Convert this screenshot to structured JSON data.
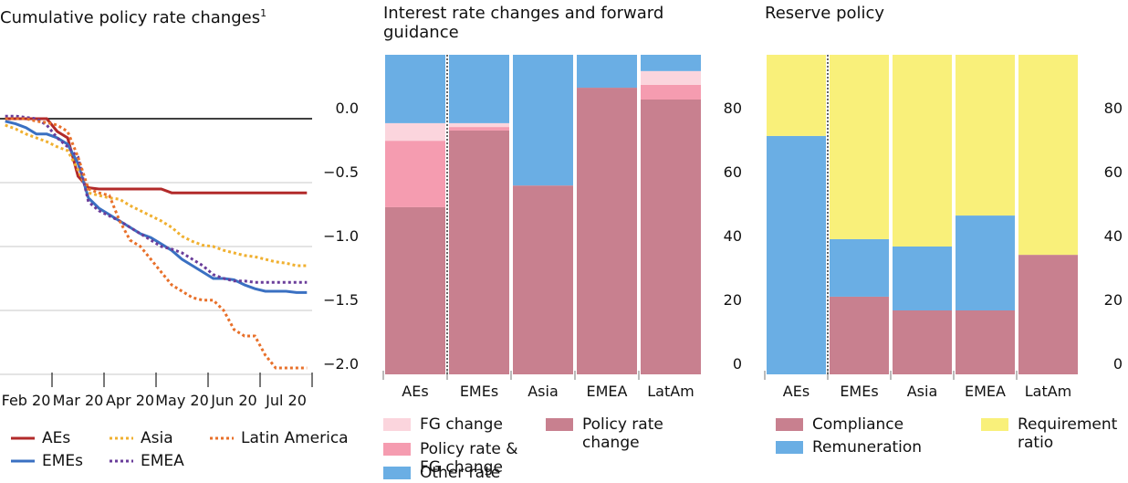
{
  "chart_data": [
    {
      "type": "line",
      "title": "Cumulative policy rate changes",
      "title_footnote": "1",
      "categories": [
        null,
        null,
        "Feb 20",
        null,
        null,
        null,
        null,
        "Mar 20",
        null,
        null,
        null,
        null,
        "Apr 20",
        null,
        null,
        null,
        null,
        "May 20",
        null,
        null,
        null,
        null,
        "Jun 20",
        null,
        null,
        null,
        null,
        "Jul 20",
        null,
        null
      ],
      "ylim": [
        -2,
        0.5
      ],
      "yticks": [
        {
          "value": 0,
          "label": "0.0"
        },
        {
          "value": -0.5,
          "label": "−0.5"
        },
        {
          "value": -1,
          "label": "−1.0"
        },
        {
          "value": -1.5,
          "label": "−1.5"
        },
        {
          "value": -2,
          "label": "−2.0"
        }
      ],
      "grid": true,
      "series": [
        {
          "name": "AEs",
          "color": "#b22a2a",
          "dashed": false,
          "values": [
            0,
            0,
            0,
            0,
            0,
            -0.1,
            -0.15,
            -0.45,
            -0.54,
            -0.55,
            -0.55,
            -0.55,
            -0.55,
            -0.55,
            -0.55,
            -0.55,
            -0.58,
            -0.58,
            -0.58,
            -0.58,
            -0.58,
            -0.58,
            -0.58,
            -0.58,
            -0.58,
            -0.58,
            -0.58,
            -0.58,
            -0.58,
            -0.58
          ]
        },
        {
          "name": "EMEs",
          "color": "#3a70c2",
          "dashed": false,
          "values": [
            -0.02,
            -0.04,
            -0.07,
            -0.12,
            -0.12,
            -0.15,
            -0.2,
            -0.35,
            -0.62,
            -0.7,
            -0.75,
            -0.8,
            -0.85,
            -0.9,
            -0.93,
            -0.98,
            -1.03,
            -1.1,
            -1.15,
            -1.2,
            -1.25,
            -1.25,
            -1.26,
            -1.3,
            -1.33,
            -1.35,
            -1.35,
            -1.35,
            -1.36,
            -1.36
          ]
        },
        {
          "name": "Asia",
          "color": "#f0b030",
          "dashed": true,
          "values": [
            -0.05,
            -0.08,
            -0.12,
            -0.15,
            -0.18,
            -0.22,
            -0.25,
            -0.4,
            -0.58,
            -0.6,
            -0.62,
            -0.63,
            -0.68,
            -0.72,
            -0.76,
            -0.8,
            -0.85,
            -0.92,
            -0.96,
            -0.99,
            -1.0,
            -1.03,
            -1.05,
            -1.07,
            -1.08,
            -1.1,
            -1.12,
            -1.13,
            -1.15,
            -1.15
          ]
        },
        {
          "name": "EMEA",
          "color": "#6a3d9a",
          "dashed": true,
          "values": [
            0.02,
            0.02,
            0.01,
            0,
            -0.05,
            -0.15,
            -0.22,
            -0.3,
            -0.65,
            -0.72,
            -0.76,
            -0.8,
            -0.85,
            -0.9,
            -0.95,
            -1.0,
            -1.02,
            -1.05,
            -1.1,
            -1.15,
            -1.22,
            -1.25,
            -1.27,
            -1.27,
            -1.28,
            -1.28,
            -1.28,
            -1.28,
            -1.28,
            -1.28
          ]
        },
        {
          "name": "Latin America",
          "color": "#e8702a",
          "dashed": true,
          "values": [
            0,
            0,
            0,
            -0.02,
            -0.03,
            -0.05,
            -0.1,
            -0.3,
            -0.55,
            -0.58,
            -0.6,
            -0.8,
            -0.95,
            -1.0,
            -1.1,
            -1.2,
            -1.3,
            -1.35,
            -1.4,
            -1.42,
            -1.42,
            -1.5,
            -1.65,
            -1.7,
            -1.7,
            -1.85,
            -1.95,
            -1.95,
            -1.95,
            -1.95
          ]
        }
      ]
    },
    {
      "type": "stacked_bar",
      "title": "Interest rate changes and forward guidance",
      "categories": [
        "AEs",
        "EMEs",
        "Asia",
        "EMEA",
        "LatAm"
      ],
      "ylim": [
        0,
        100
      ],
      "yticks": [
        0,
        20,
        40,
        60,
        80
      ],
      "series": [
        {
          "name": "Policy rate change",
          "color": "#c8808f",
          "values": [
            52.3,
            76.3,
            59.1,
            89.7,
            86
          ]
        },
        {
          "name": "Policy rate & FG change",
          "color": "#f59cb0",
          "values": [
            20.8,
            1.1,
            0,
            0,
            4.6
          ]
        },
        {
          "name": "FG change",
          "color": "#fbd5dd",
          "values": [
            5.5,
            1.2,
            0,
            0,
            4.3
          ]
        },
        {
          "name": "Other rate change",
          "color": "#6aaee4",
          "values": [
            21.4,
            21.4,
            40.9,
            10.3,
            5.1
          ]
        }
      ]
    },
    {
      "type": "stacked_bar",
      "title": "Reserve policy",
      "categories": [
        "AEs",
        "EMEs",
        "Asia",
        "EMEA",
        "LatAm"
      ],
      "ylim": [
        0,
        100
      ],
      "yticks": [
        0,
        20,
        40,
        60,
        80
      ],
      "series": [
        {
          "name": "Compliance",
          "color": "#c8808f",
          "values": [
            0,
            24.3,
            20,
            20,
            37.4
          ]
        },
        {
          "name": "Remuneration",
          "color": "#6aaee4",
          "values": [
            74.6,
            18,
            20,
            29.7,
            0
          ]
        },
        {
          "name": "Requirement ratio",
          "color": "#f9f07a",
          "values": [
            25.4,
            57.7,
            60,
            50.3,
            62.6
          ]
        }
      ]
    }
  ]
}
